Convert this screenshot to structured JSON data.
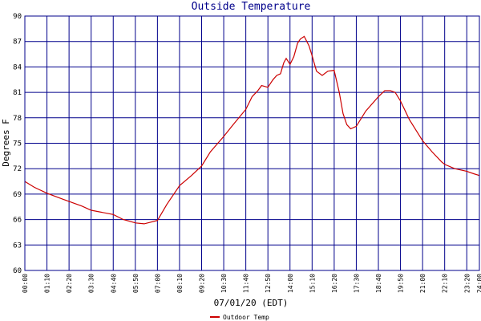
{
  "chart_data": {
    "type": "line",
    "title": "Outside Temperature",
    "ylabel": "Degrees F",
    "xlabel": "07/01/20 (EDT)",
    "ylim": [
      60,
      90
    ],
    "yticks": [
      "60",
      "63",
      "66",
      "69",
      "72",
      "75",
      "78",
      "81",
      "84",
      "87",
      "90"
    ],
    "xlim": [
      0,
      24
    ],
    "xticks": [
      "00:00",
      "01:10",
      "02:20",
      "03:30",
      "04:40",
      "05:50",
      "07:00",
      "08:10",
      "09:20",
      "10:30",
      "11:40",
      "12:50",
      "14:00",
      "15:10",
      "16:20",
      "17:30",
      "18:40",
      "19:50",
      "21:00",
      "22:10",
      "23:20",
      "24:00"
    ],
    "grid": true,
    "legend": "bottom-left",
    "line_color": "#cc0000",
    "grid_color": "#00008b",
    "series": [
      {
        "name": "Outdoor Temp",
        "x": [
          0,
          0.5,
          1.17,
          2,
          3,
          3.5,
          4.67,
          5.2,
          5.85,
          6.3,
          7.0,
          7.5,
          8.17,
          8.8,
          9.33,
          9.8,
          10.5,
          11.0,
          11.67,
          12.0,
          12.3,
          12.5,
          12.83,
          13.1,
          13.3,
          13.5,
          13.67,
          13.8,
          14.0,
          14.2,
          14.4,
          14.55,
          14.75,
          15.0,
          15.17,
          15.4,
          15.7,
          16.0,
          16.33,
          16.6,
          16.8,
          17.0,
          17.2,
          17.5,
          18.0,
          18.67,
          19.0,
          19.3,
          19.55,
          19.83,
          20.3,
          21.0,
          21.5,
          22.0,
          22.17,
          22.7,
          23.33,
          23.7,
          24.0
        ],
        "values": [
          70.5,
          69.8,
          69.1,
          68.4,
          67.6,
          67.1,
          66.6,
          66.0,
          65.6,
          65.5,
          65.9,
          67.8,
          70.0,
          71.2,
          72.3,
          74.0,
          75.8,
          77.2,
          79.0,
          80.5,
          81.2,
          81.8,
          81.6,
          82.5,
          83.0,
          83.2,
          84.5,
          85.0,
          84.3,
          85.2,
          86.8,
          87.3,
          87.6,
          86.5,
          85.3,
          83.5,
          83.0,
          83.5,
          83.6,
          81.0,
          78.5,
          77.2,
          76.7,
          77.0,
          78.8,
          80.5,
          81.2,
          81.2,
          81.0,
          80.0,
          77.8,
          75.3,
          74.0,
          72.8,
          72.5,
          72.0,
          71.7,
          71.4,
          71.2
        ]
      }
    ]
  }
}
